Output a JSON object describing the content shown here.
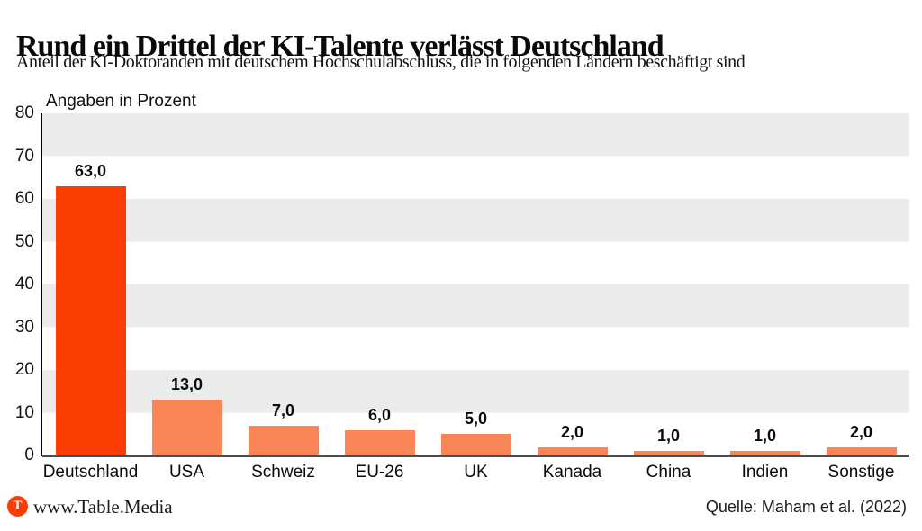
{
  "header": {
    "title": "Rund ein Drittel der KI-Talente verlässt Deutschland",
    "subtitle": "Anteil der KI-Doktoranden mit deutschem Hochschulabschluss, die in folgenden Ländern beschäftigt sind"
  },
  "chart_data": {
    "type": "bar",
    "axis_note": "Angaben in Prozent",
    "categories": [
      "Deutschland",
      "USA",
      "Schweiz",
      "EU-26",
      "UK",
      "Kanada",
      "China",
      "Indien",
      "Sonstige"
    ],
    "values": [
      63.0,
      13.0,
      7.0,
      6.0,
      5.0,
      2.0,
      1.0,
      1.0,
      2.0
    ],
    "value_labels": [
      "63,0",
      "13,0",
      "7,0",
      "6,0",
      "5,0",
      "2,0",
      "1,0",
      "1,0",
      "2,0"
    ],
    "ylim": [
      0,
      80
    ],
    "yticks": [
      0,
      10,
      20,
      30,
      40,
      50,
      60,
      70,
      80
    ],
    "grid": "striped horizontal bands, gray on 10-20/30-40/50-60/70-80",
    "legend": "none",
    "colors": {
      "highlight_bar": "#FB3D04",
      "bar": "#FA8658",
      "stripe": "#EBEBEB",
      "baseline": "#4d4d4d",
      "axis": "#000000"
    },
    "highlight_index": 0
  },
  "footer": {
    "logo_letter": "T",
    "site": "www.Table.Media",
    "source": "Quelle: Maham et al. (2022)"
  }
}
